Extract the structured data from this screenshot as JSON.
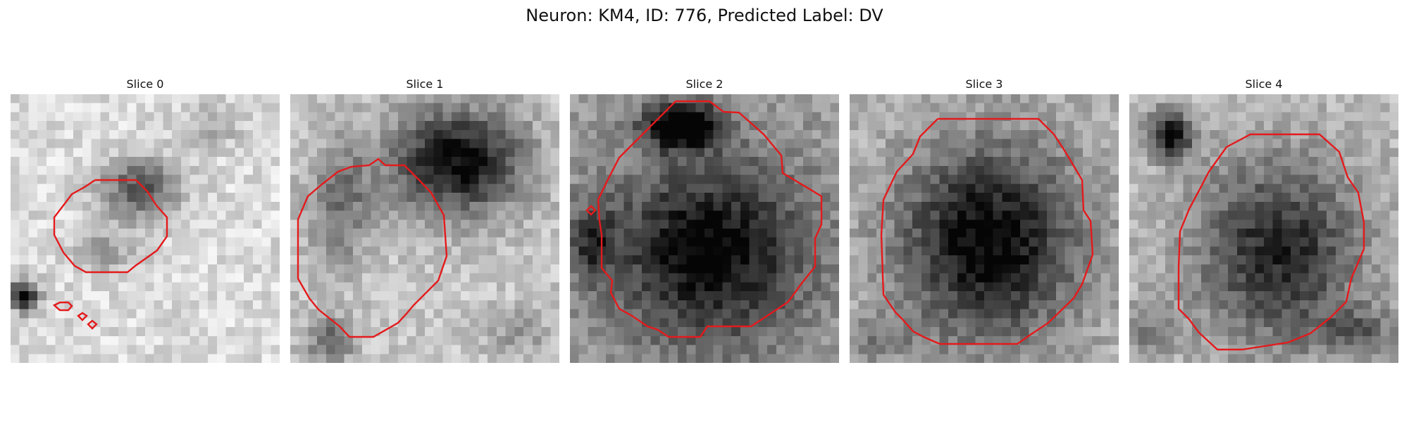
{
  "figure": {
    "title": "Neuron: KM4, ID: 776, Predicted Label: DV"
  },
  "panels": [
    {
      "title": "Slice 0"
    },
    {
      "title": "Slice 1"
    },
    {
      "title": "Slice 2"
    },
    {
      "title": "Slice 3"
    },
    {
      "title": "Slice 4"
    }
  ],
  "colors": {
    "contour": "#e41a1c",
    "background": "#ffffff"
  }
}
